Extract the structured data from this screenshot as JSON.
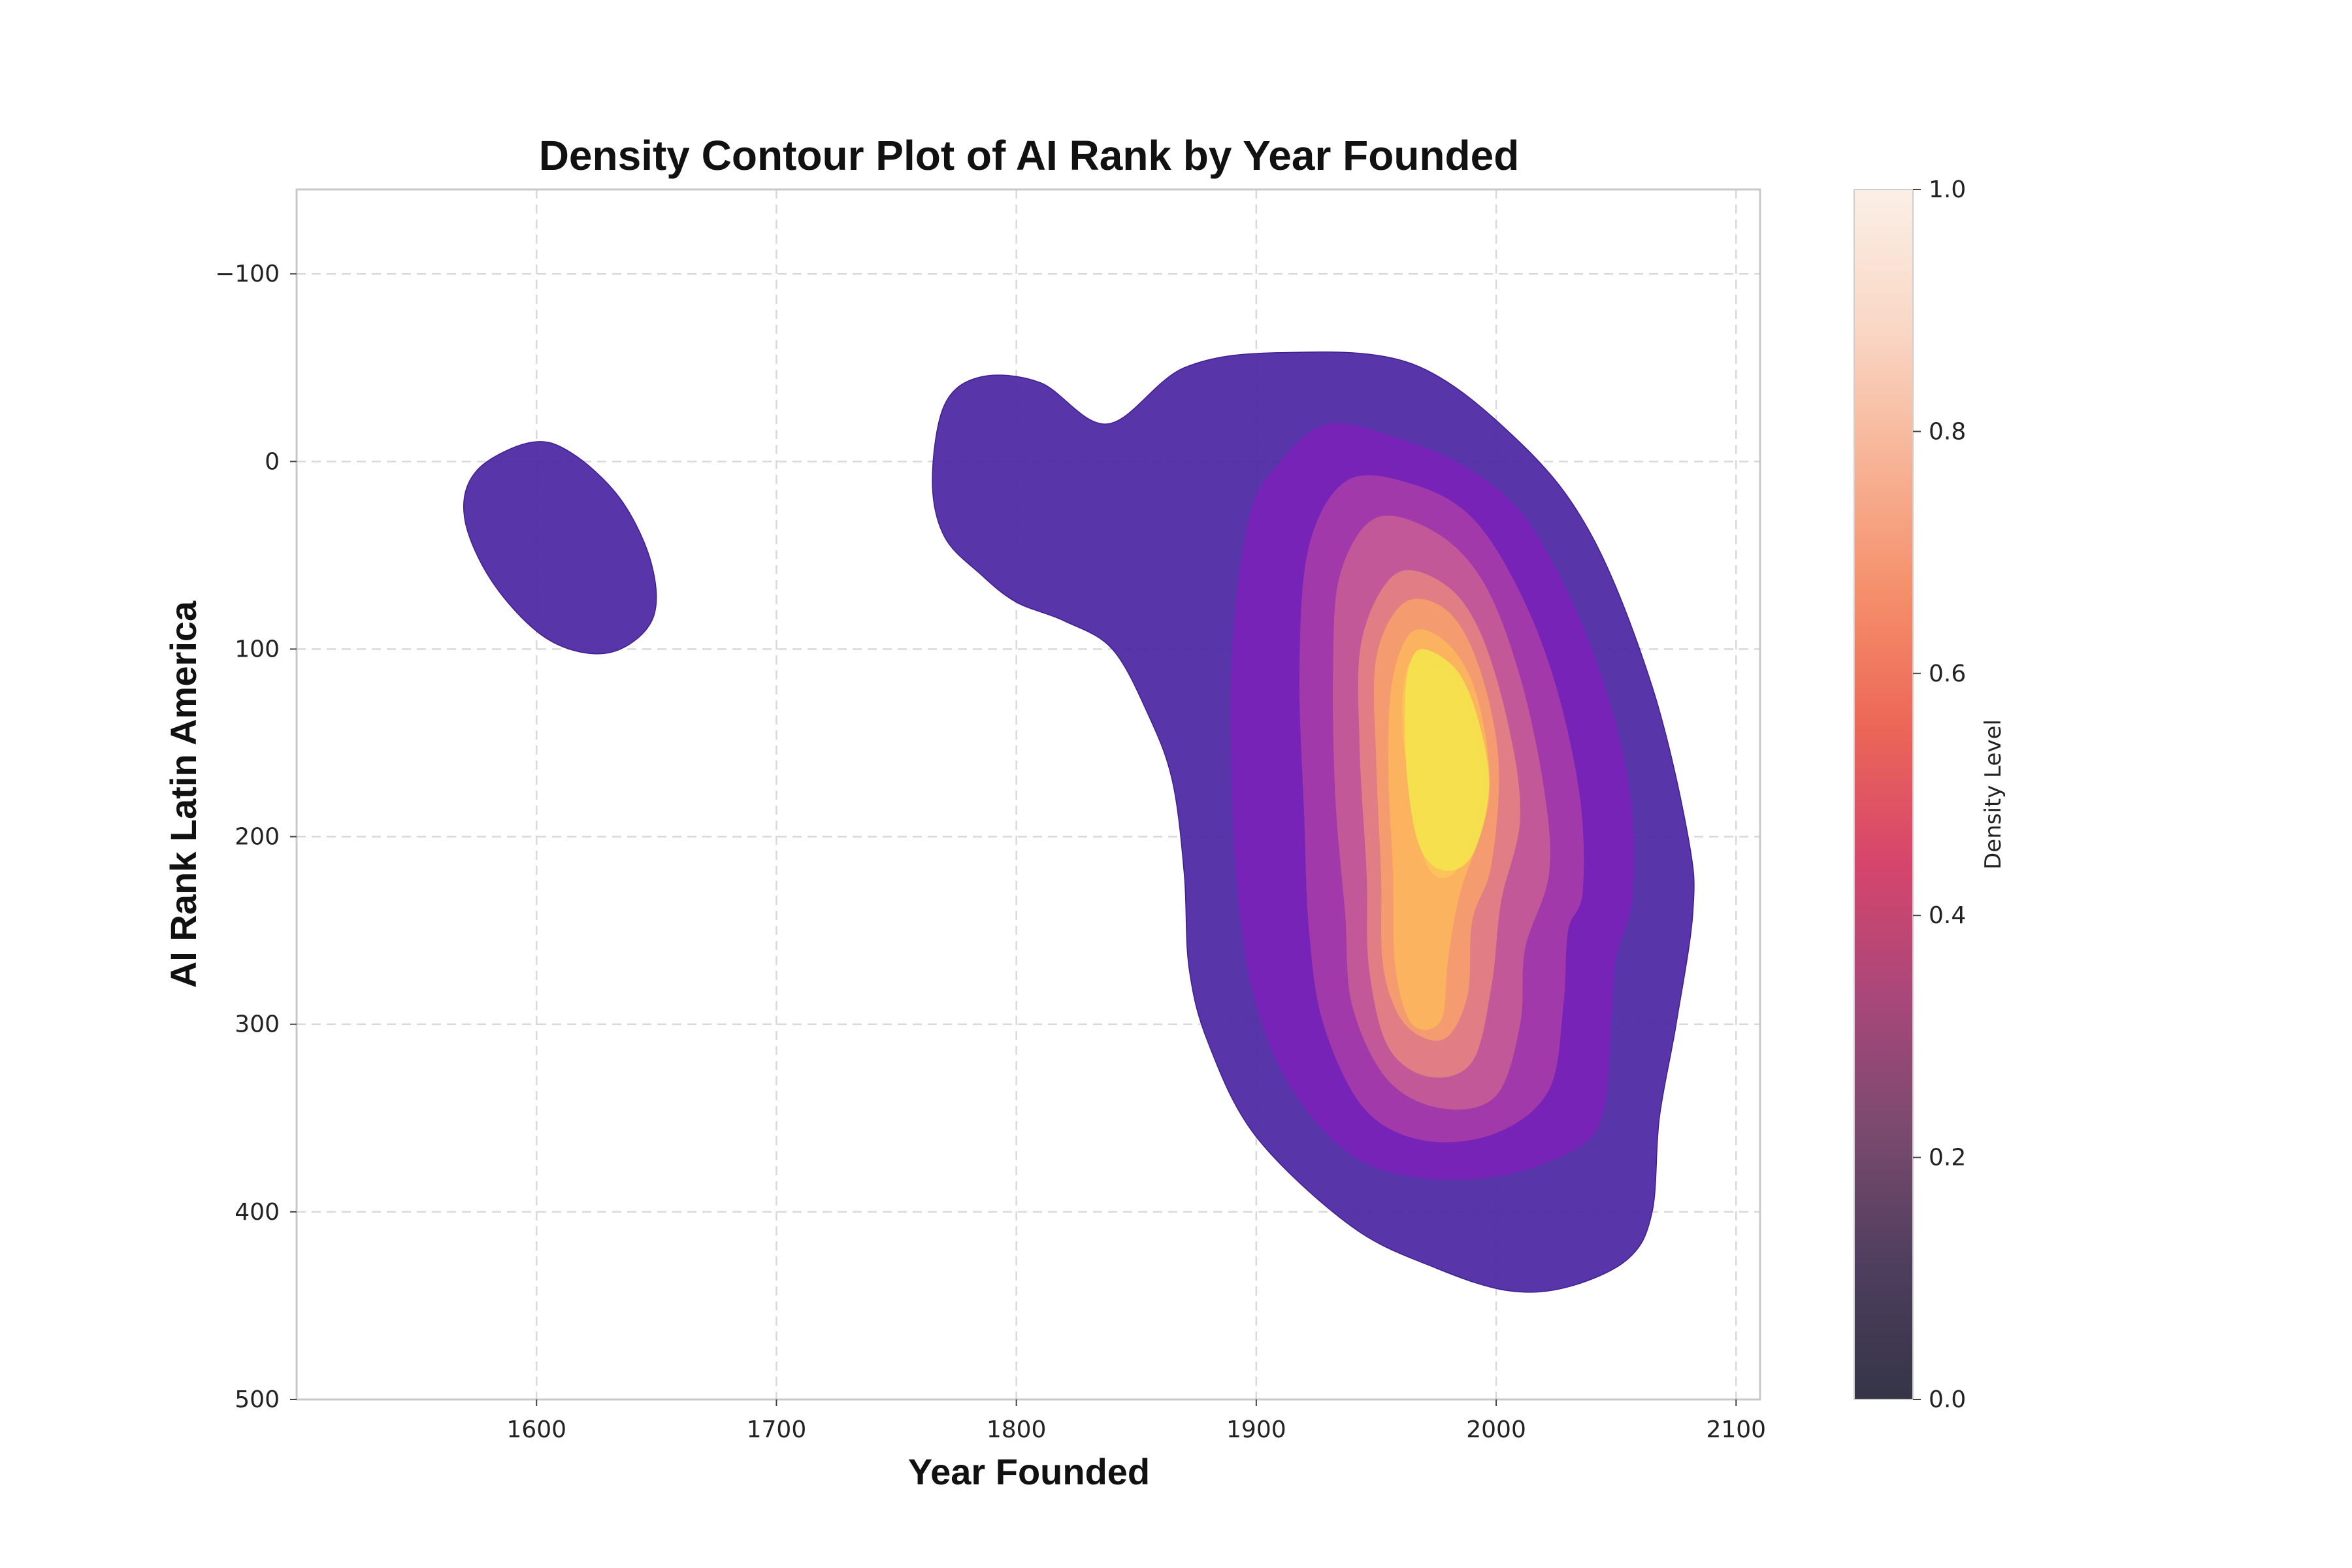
{
  "chart_data": {
    "type": "density-contour",
    "title": "Density Contour Plot of AI Rank by Year Founded",
    "xlabel": "Year Founded",
    "ylabel": "AI Rank Latin America",
    "xlim": [
      1500,
      2110
    ],
    "ylim": [
      500,
      -145
    ],
    "y_inverted": true,
    "grid": true,
    "x_ticks": [
      1600,
      1700,
      1800,
      1900,
      2000,
      2100
    ],
    "y_ticks": [
      -100,
      0,
      100,
      200,
      300,
      400,
      500
    ],
    "colorbar": {
      "label": "Density Level",
      "range": [
        0,
        1
      ],
      "ticks": [
        0.0,
        0.2,
        0.4,
        0.6,
        0.8,
        1.0
      ],
      "colors": [
        "#353547",
        "#4e3e5e",
        "#7a4a6e",
        "#a9477a",
        "#d6456c",
        "#ec6757",
        "#f58f6a",
        "#f7b497",
        "#f9d8c6",
        "#fbefe6"
      ]
    },
    "contour_colors": [
      "#4b26a3",
      "#7a22b8",
      "#a23aab",
      "#c45a97",
      "#e17f84",
      "#f59d6e",
      "#fbb45f",
      "#fcc459",
      "#f6e14e"
    ],
    "contours": [
      {
        "level": 1,
        "regions": [
          [
            [
              1597,
              -10
            ],
            [
              1614,
              -5
            ],
            [
              1635,
              20
            ],
            [
              1648,
              55
            ],
            [
              1648,
              85
            ],
            [
              1630,
              102
            ],
            [
              1605,
              95
            ],
            [
              1582,
              65
            ],
            [
              1570,
              30
            ],
            [
              1575,
              5
            ]
          ],
          [
            [
              1785,
              -45
            ],
            [
              1810,
              -42
            ],
            [
              1838,
              -20
            ],
            [
              1870,
              -50
            ],
            [
              1910,
              -58
            ],
            [
              1965,
              -52
            ],
            [
              2010,
              -10
            ],
            [
              2040,
              40
            ],
            [
              2065,
              120
            ],
            [
              2080,
              200
            ],
            [
              2082,
              240
            ],
            [
              2075,
              300
            ],
            [
              2068,
              350
            ],
            [
              2065,
              400
            ],
            [
              2055,
              425
            ],
            [
              2030,
              440
            ],
            [
              2005,
              442
            ],
            [
              1975,
              430
            ],
            [
              1940,
              408
            ],
            [
              1900,
              360
            ],
            [
              1880,
              310
            ],
            [
              1872,
              270
            ],
            [
              1870,
              220
            ],
            [
              1865,
              170
            ],
            [
              1855,
              135
            ],
            [
              1840,
              100
            ],
            [
              1820,
              85
            ],
            [
              1800,
              75
            ],
            [
              1785,
              60
            ],
            [
              1770,
              40
            ],
            [
              1765,
              10
            ],
            [
              1770,
              -30
            ]
          ]
        ]
      },
      {
        "level": 2,
        "regions": [
          [
            [
              1930,
              -20
            ],
            [
              1960,
              -12
            ],
            [
              1990,
              5
            ],
            [
              2015,
              35
            ],
            [
              2040,
              100
            ],
            [
              2055,
              170
            ],
            [
              2057,
              230
            ],
            [
              2050,
              265
            ],
            [
              2048,
              300
            ],
            [
              2045,
              345
            ],
            [
              2035,
              365
            ],
            [
              2005,
              380
            ],
            [
              1970,
              382
            ],
            [
              1940,
              370
            ],
            [
              1915,
              335
            ],
            [
              1900,
              290
            ],
            [
              1893,
              240
            ],
            [
              1890,
              180
            ],
            [
              1890,
              100
            ],
            [
              1897,
              30
            ],
            [
              1910,
              0
            ]
          ]
        ]
      },
      {
        "level": 3,
        "regions": [
          [
            [
              1938,
              10
            ],
            [
              1965,
              12
            ],
            [
              1990,
              30
            ],
            [
              2010,
              70
            ],
            [
              2025,
              120
            ],
            [
              2035,
              180
            ],
            [
              2036,
              230
            ],
            [
              2030,
              250
            ],
            [
              2028,
              290
            ],
            [
              2022,
              335
            ],
            [
              2000,
              358
            ],
            [
              1970,
              362
            ],
            [
              1945,
              345
            ],
            [
              1928,
              300
            ],
            [
              1922,
              250
            ],
            [
              1920,
              190
            ],
            [
              1918,
              110
            ],
            [
              1922,
              45
            ]
          ]
        ]
      },
      {
        "level": 4,
        "regions": [
          [
            [
              1950,
              30
            ],
            [
              1975,
              38
            ],
            [
              1995,
              65
            ],
            [
              2010,
              115
            ],
            [
              2020,
              175
            ],
            [
              2022,
              220
            ],
            [
              2012,
              260
            ],
            [
              2010,
              300
            ],
            [
              2000,
              338
            ],
            [
              1978,
              345
            ],
            [
              1955,
              330
            ],
            [
              1940,
              290
            ],
            [
              1937,
              240
            ],
            [
              1933,
              180
            ],
            [
              1932,
              110
            ],
            [
              1935,
              60
            ]
          ]
        ]
      },
      {
        "level": 5,
        "regions": [
          [
            [
              1958,
              60
            ],
            [
              1978,
              65
            ],
            [
              1993,
              90
            ],
            [
              2005,
              140
            ],
            [
              2010,
              190
            ],
            [
              2002,
              235
            ],
            [
              1998,
              280
            ],
            [
              1990,
              320
            ],
            [
              1972,
              328
            ],
            [
              1955,
              312
            ],
            [
              1947,
              270
            ],
            [
              1946,
              220
            ],
            [
              1943,
              150
            ],
            [
              1944,
              95
            ]
          ]
        ]
      },
      {
        "level": 6,
        "regions": [
          [
            [
              1962,
              75
            ],
            [
              1980,
              80
            ],
            [
              1993,
              110
            ],
            [
              2001,
              160
            ],
            [
              1998,
              215
            ],
            [
              1990,
              245
            ],
            [
              1988,
              285
            ],
            [
              1978,
              308
            ],
            [
              1962,
              300
            ],
            [
              1953,
              270
            ],
            [
              1952,
              220
            ],
            [
              1950,
              160
            ],
            [
              1950,
              105
            ]
          ]
        ]
      },
      {
        "level": 7,
        "regions": [
          [
            [
              1966,
              90
            ],
            [
              1982,
              100
            ],
            [
              1993,
              130
            ],
            [
              1997,
              180
            ],
            [
              1985,
              230
            ],
            [
              1980,
              265
            ],
            [
              1977,
              298
            ],
            [
              1965,
              300
            ],
            [
              1958,
              270
            ],
            [
              1957,
              220
            ],
            [
              1955,
              160
            ],
            [
              1957,
              115
            ]
          ]
        ]
      },
      {
        "level": 8,
        "regions": [
          [
            [
              1968,
              105
            ],
            [
              1985,
              122
            ],
            [
              1993,
              160
            ],
            [
              1992,
              188
            ],
            [
              1985,
              215
            ],
            [
              1977,
              222
            ],
            [
              1970,
              212
            ],
            [
              1965,
              180
            ],
            [
              1961,
              145
            ],
            [
              1962,
              115
            ]
          ]
        ]
      },
      {
        "level": 9,
        "regions": [
          [
            [
              1970,
              100
            ],
            [
              1984,
              112
            ],
            [
              1993,
              140
            ],
            [
              1997,
              175
            ],
            [
              1990,
              210
            ],
            [
              1978,
              218
            ],
            [
              1968,
              205
            ],
            [
              1963,
              170
            ],
            [
              1962,
              130
            ],
            [
              1964,
              108
            ]
          ]
        ]
      }
    ]
  }
}
